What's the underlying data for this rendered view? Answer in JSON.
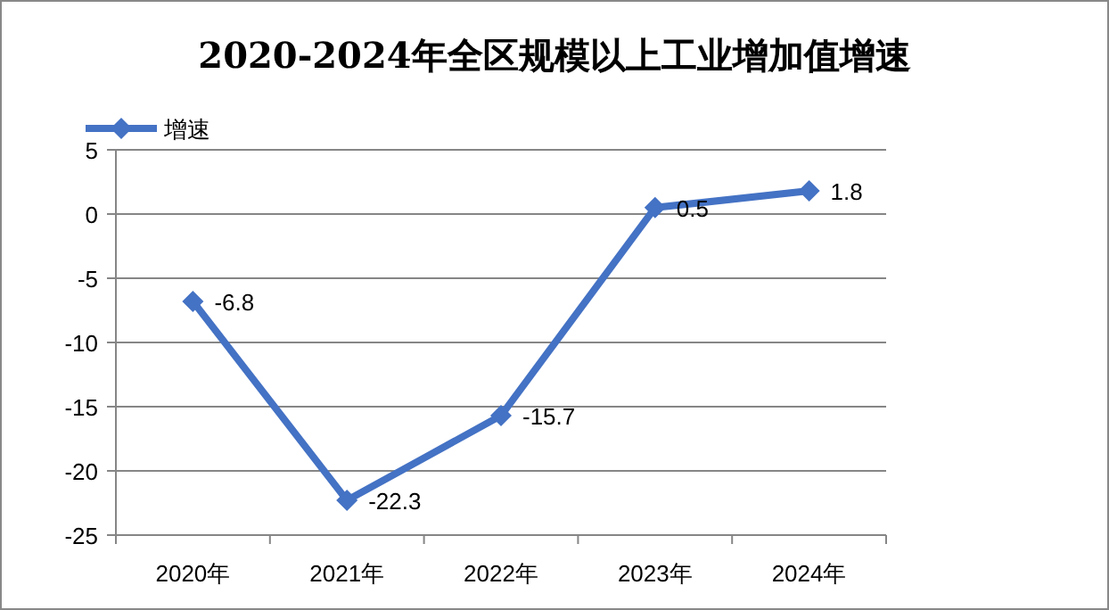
{
  "chart_data": {
    "type": "line",
    "title": "2020-2024年全区规模以上工业增加值增速",
    "categories": [
      "2020年",
      "2021年",
      "2022年",
      "2023年",
      "2024年"
    ],
    "series": [
      {
        "name": "增速",
        "color": "#4472c4",
        "values": [
          -6.8,
          -22.3,
          -15.7,
          0.5,
          1.8
        ]
      }
    ],
    "ylim": [
      -25,
      5
    ],
    "yticks": [
      -25,
      -20,
      -15,
      -10,
      -5,
      0,
      5
    ],
    "grid": "y",
    "legend": "top left",
    "marker": "diamond",
    "line_style": "solid",
    "data_labels": true
  }
}
